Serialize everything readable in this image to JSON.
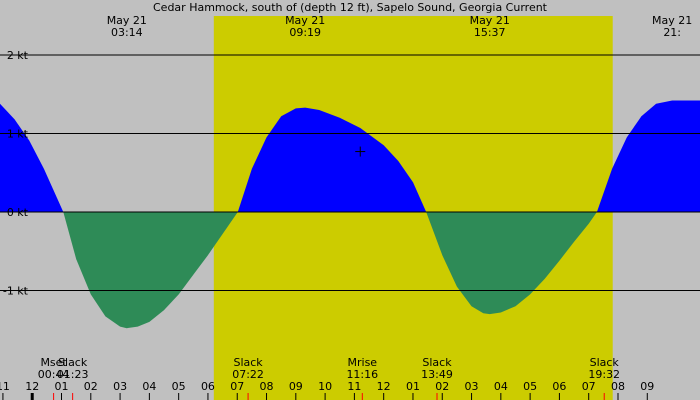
{
  "chart_data": {
    "type": "area",
    "title": "Cedar Hammock, south of (depth 12 ft), Sapelo Sound, Georgia Current",
    "unit": "kt",
    "time_range_hours": [
      22.9,
      46.8
    ],
    "ylim": [
      -2.0,
      2.0
    ],
    "y_ticks": [
      {
        "value": 2,
        "label": "2 kt"
      },
      {
        "value": 1,
        "label": "1 kt"
      },
      {
        "value": 0,
        "label": "0 kt"
      },
      {
        "value": -1,
        "label": "-1 kt"
      }
    ],
    "daylight": {
      "start_hour": 30.2,
      "end_hour": 43.82
    },
    "header_marks": [
      {
        "hour": 27.23,
        "date": "May 21",
        "time": "03:14"
      },
      {
        "hour": 33.32,
        "date": "May 21",
        "time": "09:19"
      },
      {
        "hour": 39.62,
        "date": "May 21",
        "time": "15:37"
      },
      {
        "hour": 45.85,
        "date": "May 21",
        "time": "21:"
      }
    ],
    "current_series": [
      {
        "hour": 22.9,
        "kt": 1.38
      },
      {
        "hour": 23.4,
        "kt": 1.18
      },
      {
        "hour": 23.9,
        "kt": 0.91
      },
      {
        "hour": 24.4,
        "kt": 0.55
      },
      {
        "hour": 25.06,
        "kt": 0.0
      },
      {
        "hour": 25.5,
        "kt": -0.6
      },
      {
        "hour": 26.0,
        "kt": -1.05
      },
      {
        "hour": 26.5,
        "kt": -1.33
      },
      {
        "hour": 27.0,
        "kt": -1.46
      },
      {
        "hour": 27.23,
        "kt": -1.48
      },
      {
        "hour": 27.6,
        "kt": -1.46
      },
      {
        "hour": 28.0,
        "kt": -1.4
      },
      {
        "hour": 28.5,
        "kt": -1.25
      },
      {
        "hour": 29.0,
        "kt": -1.05
      },
      {
        "hour": 29.5,
        "kt": -0.8
      },
      {
        "hour": 30.0,
        "kt": -0.55
      },
      {
        "hour": 30.5,
        "kt": -0.28
      },
      {
        "hour": 31.02,
        "kt": 0.0
      },
      {
        "hour": 31.5,
        "kt": 0.55
      },
      {
        "hour": 32.0,
        "kt": 0.95
      },
      {
        "hour": 32.5,
        "kt": 1.22
      },
      {
        "hour": 33.0,
        "kt": 1.32
      },
      {
        "hour": 33.32,
        "kt": 1.33
      },
      {
        "hour": 33.8,
        "kt": 1.3
      },
      {
        "hour": 34.5,
        "kt": 1.2
      },
      {
        "hour": 35.2,
        "kt": 1.07
      },
      {
        "hour": 36.0,
        "kt": 0.85
      },
      {
        "hour": 36.5,
        "kt": 0.65
      },
      {
        "hour": 37.0,
        "kt": 0.38
      },
      {
        "hour": 37.45,
        "kt": 0.0
      },
      {
        "hour": 38.0,
        "kt": -0.55
      },
      {
        "hour": 38.5,
        "kt": -0.95
      },
      {
        "hour": 39.0,
        "kt": -1.2
      },
      {
        "hour": 39.4,
        "kt": -1.29
      },
      {
        "hour": 39.62,
        "kt": -1.3
      },
      {
        "hour": 40.0,
        "kt": -1.28
      },
      {
        "hour": 40.5,
        "kt": -1.2
      },
      {
        "hour": 41.0,
        "kt": -1.05
      },
      {
        "hour": 41.5,
        "kt": -0.85
      },
      {
        "hour": 42.0,
        "kt": -0.62
      },
      {
        "hour": 42.5,
        "kt": -0.38
      },
      {
        "hour": 43.0,
        "kt": -0.15
      },
      {
        "hour": 43.28,
        "kt": 0.0
      },
      {
        "hour": 43.8,
        "kt": 0.55
      },
      {
        "hour": 44.3,
        "kt": 0.95
      },
      {
        "hour": 44.8,
        "kt": 1.22
      },
      {
        "hour": 45.3,
        "kt": 1.38
      },
      {
        "hour": 45.85,
        "kt": 1.42
      },
      {
        "hour": 46.8,
        "kt": 1.42
      }
    ],
    "events": [
      {
        "name": "Mset",
        "time": "00:44",
        "hour": 24.73,
        "marker": "moon"
      },
      {
        "name": "Slack",
        "time": "01:23",
        "hour": 25.38,
        "marker": "slack"
      },
      {
        "name": "Slack",
        "time": "07:22",
        "hour": 31.37,
        "marker": "slack"
      },
      {
        "name": "Mrise",
        "time": "11:16",
        "hour": 35.27,
        "marker": "moon"
      },
      {
        "name": "Slack",
        "time": "13:49",
        "hour": 37.82,
        "marker": "slack"
      },
      {
        "name": "Slack",
        "time": "19:32",
        "hour": 43.53,
        "marker": "slack"
      }
    ],
    "plus_marker": {
      "hour": 35.2,
      "kt": 0.77
    },
    "hour_ticks": [
      {
        "hour": 23,
        "label": "11"
      },
      {
        "hour": 24,
        "label": "12"
      },
      {
        "hour": 25,
        "label": "01"
      },
      {
        "hour": 26,
        "label": "02"
      },
      {
        "hour": 27,
        "label": "03"
      },
      {
        "hour": 28,
        "label": "04"
      },
      {
        "hour": 29,
        "label": "05"
      },
      {
        "hour": 30,
        "label": "06"
      },
      {
        "hour": 31,
        "label": "07"
      },
      {
        "hour": 32,
        "label": "08"
      },
      {
        "hour": 33,
        "label": "09"
      },
      {
        "hour": 34,
        "label": "10"
      },
      {
        "hour": 35,
        "label": "11"
      },
      {
        "hour": 36,
        "label": "12"
      },
      {
        "hour": 37,
        "label": "01"
      },
      {
        "hour": 38,
        "label": "02"
      },
      {
        "hour": 39,
        "label": "03"
      },
      {
        "hour": 40,
        "label": "04"
      },
      {
        "hour": 41,
        "label": "05"
      },
      {
        "hour": 42,
        "label": "06"
      },
      {
        "hour": 43,
        "label": "07"
      },
      {
        "hour": 44,
        "label": "08"
      },
      {
        "hour": 45,
        "label": "09"
      }
    ],
    "colors": {
      "night": "#c0c0c0",
      "day": "#cccc00",
      "flood": "#0000ff",
      "ebb": "#2e8b57",
      "grid": "#000000",
      "slack_marker": "#ff0000"
    }
  }
}
